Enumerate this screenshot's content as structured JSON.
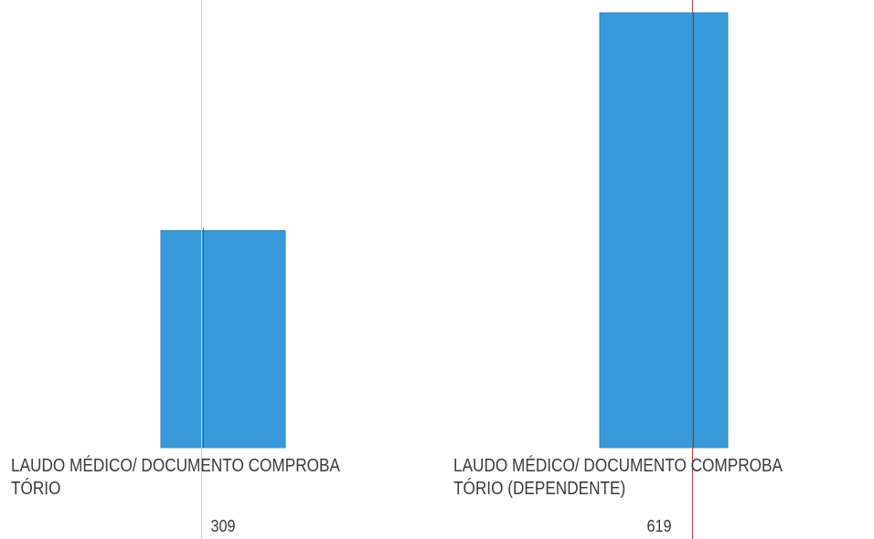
{
  "chart_data": {
    "type": "bar",
    "categories": [
      "LAUDO MÉDICO/ DOCUMENTO COMPROBATÓRIO",
      "LAUDO MÉDICO/ DOCUMENTO COMPROBATÓRIO (DEPENDENTE)"
    ],
    "category_label_lines": [
      [
        "LAUDO MÉDICO/ DOCUMENTO COMPROBA",
        "TÓRIO"
      ],
      [
        "LAUDO MÉDICO/ DOCUMENTO COMPROBA",
        "TÓRIO (DEPENDENTE)"
      ]
    ],
    "values": [
      309,
      619
    ],
    "value_labels": [
      "309",
      "619"
    ],
    "ylim": [
      0,
      619
    ],
    "grid": false,
    "legend": "none",
    "colors": {
      "bar": "#3a9ad9",
      "bar_edge": "#2f86c4",
      "ref_line_gray": "#c8c8c8",
      "ref_line_dark": "#555555",
      "ref_line_red": "#b84040",
      "text": "#3a3a3a"
    }
  }
}
